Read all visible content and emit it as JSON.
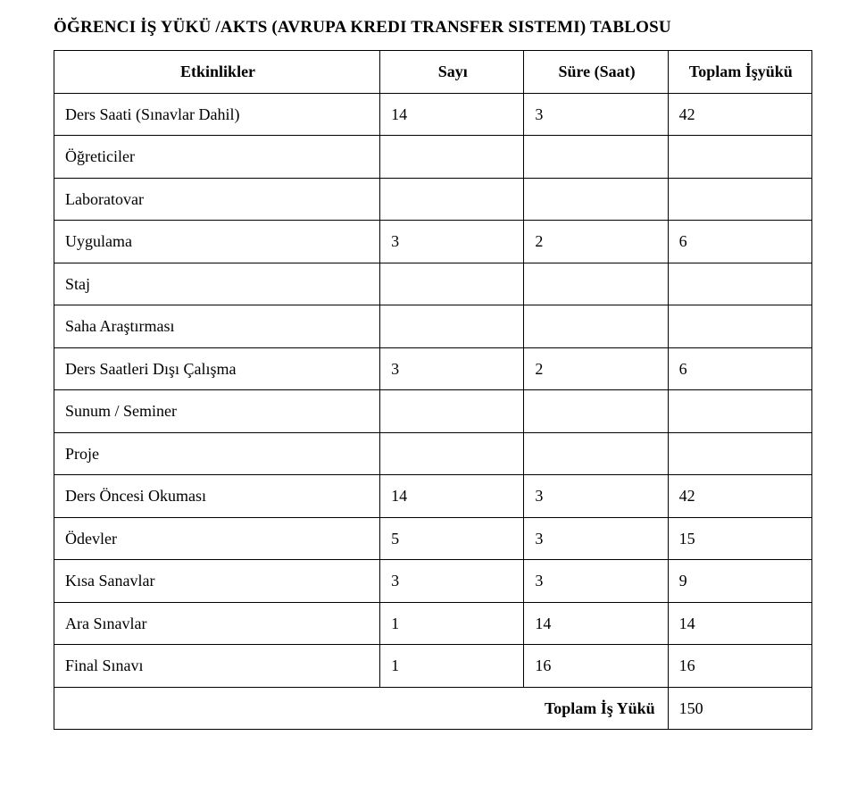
{
  "title": "ÖĞRENCI İŞ YÜKÜ /AKTS (AVRUPA KREDI TRANSFER SISTEMI) TABLOSU",
  "table": {
    "columns": [
      "Etkinlikler",
      "Sayı",
      "Süre (Saat)",
      "Toplam İşyükü"
    ],
    "rows": [
      {
        "label": "Ders Saati (Sınavlar Dahil)",
        "c1": "14",
        "c2": "3",
        "c3": "42"
      },
      {
        "label": "Öğreticiler",
        "c1": "",
        "c2": "",
        "c3": ""
      },
      {
        "label": "Laboratovar",
        "c1": "",
        "c2": "",
        "c3": ""
      },
      {
        "label": "Uygulama",
        "c1": "3",
        "c2": "2",
        "c3": "6"
      },
      {
        "label": "Staj",
        "c1": "",
        "c2": "",
        "c3": ""
      },
      {
        "label": "Saha Araştırması",
        "c1": "",
        "c2": "",
        "c3": ""
      },
      {
        "label": "Ders Saatleri Dışı Çalışma",
        "c1": "3",
        "c2": "2",
        "c3": "6"
      },
      {
        "label": "Sunum / Seminer",
        "c1": "",
        "c2": "",
        "c3": ""
      },
      {
        "label": "Proje",
        "c1": "",
        "c2": "",
        "c3": ""
      },
      {
        "label": "Ders Öncesi Okuması",
        "c1": "14",
        "c2": "3",
        "c3": "42"
      },
      {
        "label": "Ödevler",
        "c1": "5",
        "c2": "3",
        "c3": "15"
      },
      {
        "label": "Kısa Sanavlar",
        "c1": "3",
        "c2": "3",
        "c3": "9"
      },
      {
        "label": "Ara Sınavlar",
        "c1": "1",
        "c2": "14",
        "c3": "14"
      },
      {
        "label": "Final Sınavı",
        "c1": "1",
        "c2": "16",
        "c3": "16"
      }
    ],
    "footer": {
      "label": "Toplam İş Yükü",
      "value": "150"
    }
  },
  "style": {
    "font_family": "Times New Roman",
    "title_fontsize": 19,
    "cell_fontsize": 18,
    "border_color": "#000000",
    "background_color": "#ffffff",
    "text_color": "#000000"
  }
}
